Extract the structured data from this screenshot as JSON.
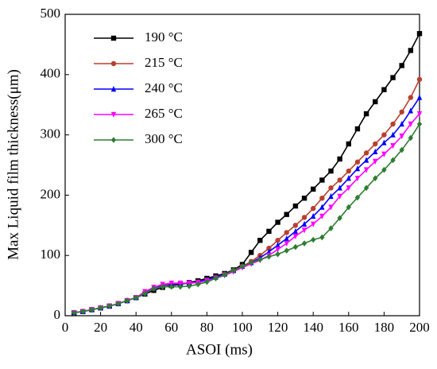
{
  "chart_data": {
    "type": "line",
    "xlabel": "ASOI (ms)",
    "ylabel": "Max Liquid film thickness(μm)",
    "x": [
      5,
      10,
      15,
      20,
      25,
      30,
      35,
      40,
      45,
      50,
      55,
      60,
      65,
      70,
      75,
      80,
      85,
      90,
      95,
      100,
      105,
      110,
      115,
      120,
      125,
      130,
      135,
      140,
      145,
      150,
      155,
      160,
      165,
      170,
      175,
      180,
      185,
      190,
      195,
      200
    ],
    "series": [
      {
        "name": "190 °C",
        "color": "#000000",
        "marker": "square",
        "values": [
          5,
          7,
          10,
          13,
          16,
          20,
          25,
          30,
          36,
          42,
          47,
          50,
          52,
          55,
          58,
          62,
          66,
          70,
          76,
          85,
          105,
          125,
          140,
          155,
          168,
          182,
          195,
          210,
          225,
          240,
          260,
          285,
          310,
          335,
          355,
          375,
          395,
          415,
          440,
          468
        ]
      },
      {
        "name": "215 °C",
        "color": "#b8402f",
        "marker": "circle",
        "values": [
          5,
          7,
          10,
          13,
          16,
          20,
          25,
          30,
          37,
          45,
          50,
          52,
          53,
          54,
          56,
          60,
          64,
          69,
          75,
          82,
          90,
          100,
          112,
          125,
          138,
          150,
          163,
          178,
          195,
          212,
          225,
          240,
          255,
          270,
          285,
          300,
          318,
          338,
          362,
          392
        ]
      },
      {
        "name": "240 °C",
        "color": "#0000ff",
        "marker": "triangle-up",
        "values": [
          5,
          7,
          10,
          13,
          16,
          20,
          25,
          30,
          38,
          46,
          51,
          53,
          53,
          54,
          56,
          60,
          64,
          69,
          75,
          82,
          88,
          96,
          106,
          117,
          128,
          140,
          152,
          165,
          180,
          198,
          212,
          228,
          244,
          258,
          272,
          287,
          300,
          318,
          340,
          362
        ]
      },
      {
        "name": "265 °C",
        "color": "#ff00ff",
        "marker": "triangle-down",
        "values": [
          5,
          7,
          10,
          13,
          16,
          20,
          25,
          30,
          40,
          47,
          52,
          54,
          54,
          54,
          55,
          58,
          62,
          67,
          73,
          80,
          86,
          92,
          100,
          110,
          120,
          132,
          142,
          152,
          165,
          180,
          198,
          212,
          228,
          242,
          256,
          268,
          282,
          298,
          318,
          335
        ]
      },
      {
        "name": "300 °C",
        "color": "#2e7d32",
        "marker": "diamond",
        "values": [
          5,
          7,
          10,
          13,
          16,
          20,
          25,
          30,
          37,
          45,
          48,
          48,
          48,
          49,
          52,
          56,
          62,
          68,
          75,
          82,
          88,
          93,
          98,
          102,
          108,
          114,
          120,
          126,
          130,
          145,
          162,
          180,
          196,
          212,
          228,
          242,
          258,
          275,
          295,
          318
        ]
      }
    ],
    "xlim": [
      0,
      200
    ],
    "xticks": [
      0,
      20,
      40,
      60,
      80,
      100,
      120,
      140,
      160,
      180,
      200
    ],
    "ylim": [
      0,
      500
    ],
    "yticks": [
      0,
      100,
      200,
      300,
      400,
      500
    ],
    "legend": "upper-left"
  }
}
